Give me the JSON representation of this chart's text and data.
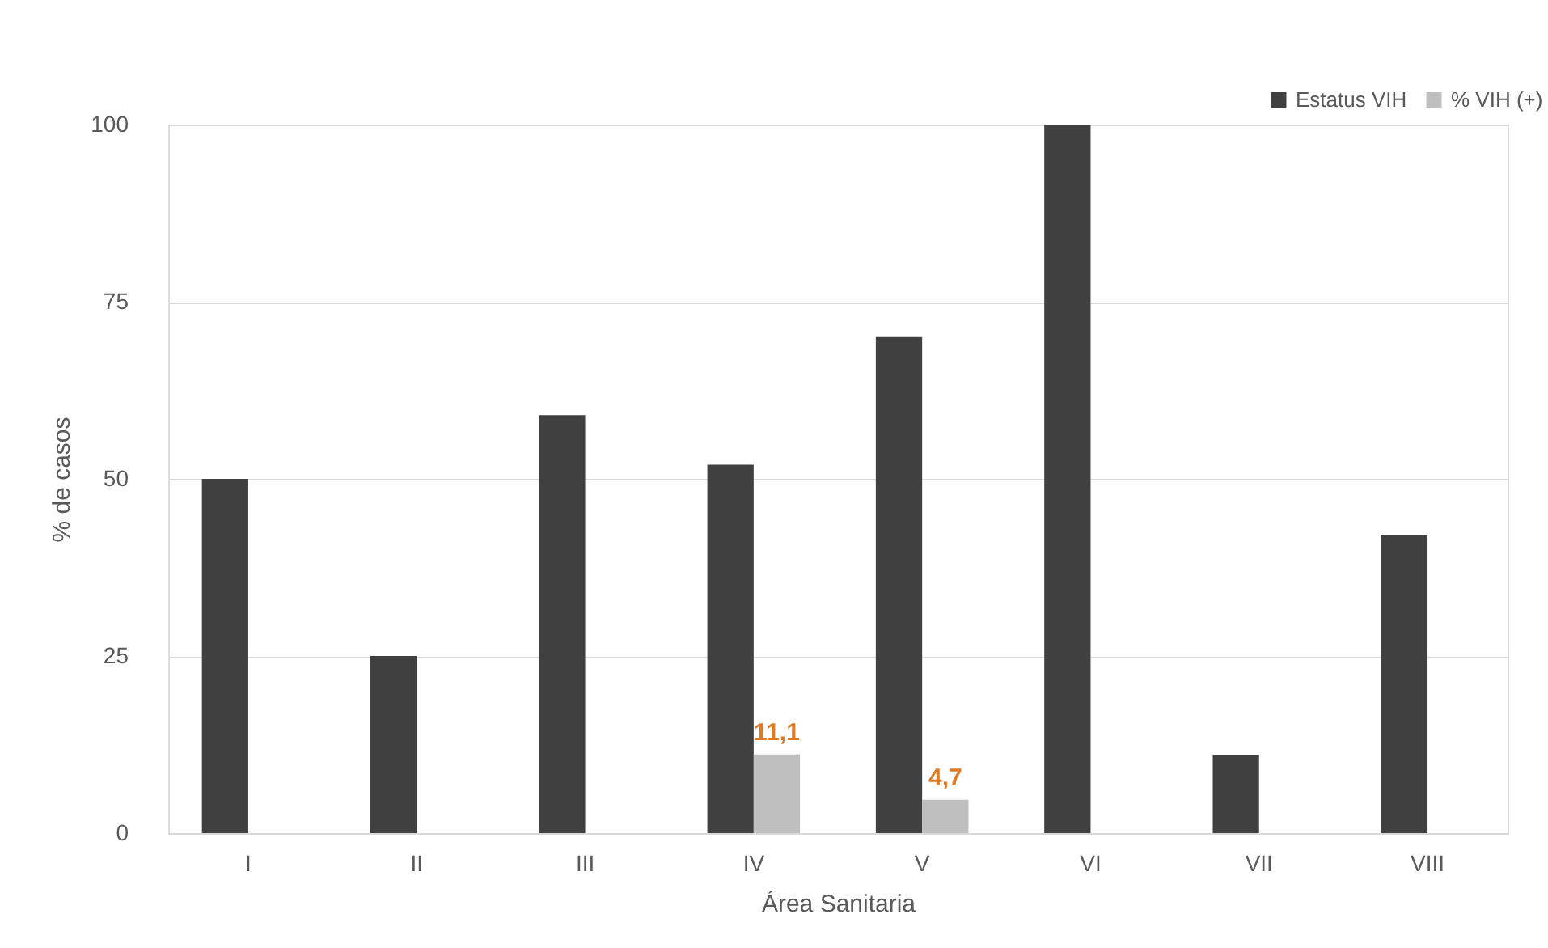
{
  "chart_data": {
    "type": "bar",
    "xlabel": "Área Sanitaria",
    "ylabel": "% de casos",
    "categories": [
      "I",
      "II",
      "III",
      "IV",
      "V",
      "VI",
      "VII",
      "VIII"
    ],
    "series": [
      {
        "name": "Estatus VIH",
        "color": "#404040",
        "values": [
          50,
          25,
          59,
          52,
          70,
          100,
          11,
          42
        ]
      },
      {
        "name": "% VIH (+)",
        "color": "#bfbfbf",
        "values": [
          null,
          null,
          null,
          11.1,
          4.7,
          null,
          null,
          null
        ],
        "value_labels": [
          null,
          null,
          null,
          "11,1",
          "4,7",
          null,
          null,
          null
        ]
      }
    ],
    "ylim": [
      0,
      100
    ],
    "yticks": [
      0,
      25,
      50,
      75,
      100
    ],
    "grid": "y",
    "legend": "top right"
  }
}
